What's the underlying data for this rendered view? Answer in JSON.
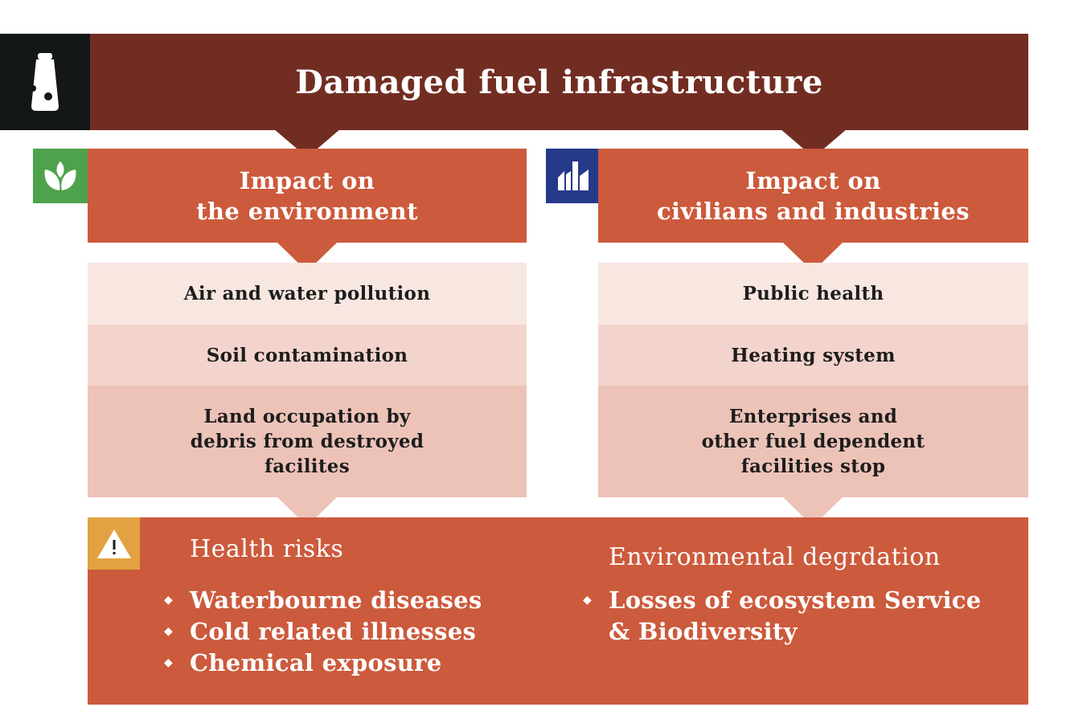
{
  "title": "Damaged fuel infrastructure",
  "left_panel": {
    "heading": "Impact on\nthe environment",
    "icon": "leaf-icon",
    "items": [
      "Air and water pollution",
      "Soil contamination",
      "Land occupation by\ndebris from destroyed\nfacilites"
    ]
  },
  "right_panel": {
    "heading": "Impact on\ncivilians and industries",
    "icon": "factory-icon",
    "items": [
      "Public health",
      "Heating system",
      "Enterprises and\nother fuel dependent\nfacilities stop"
    ]
  },
  "bottom": {
    "icon": "warning-icon",
    "health": {
      "title": "Health risks",
      "items": [
        "Waterbourne diseases",
        "Cold related illnesses",
        "Chemical exposure"
      ]
    },
    "environment": {
      "title": "Environmental degrdation",
      "items": [
        "Losses of ecosystem Service\n& Biodiversity"
      ]
    }
  },
  "colors": {
    "title_bar": "#722d22",
    "panel_heading": "#cc5a3c",
    "env_icon_bg": "#4da24b",
    "industry_icon_bg": "#263a8a",
    "warning_icon_bg": "#e2a241"
  }
}
